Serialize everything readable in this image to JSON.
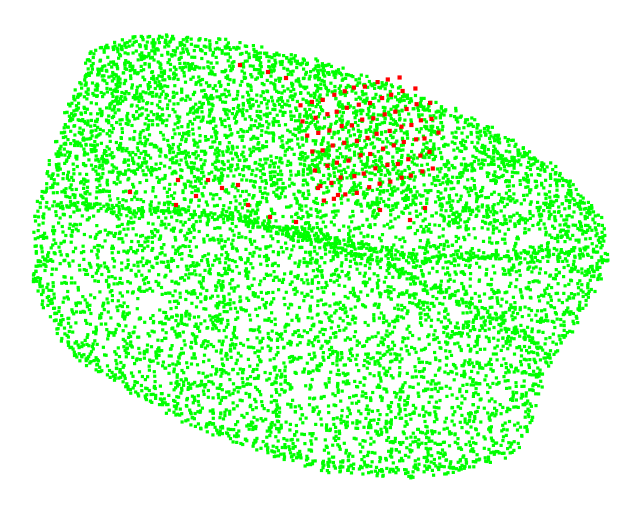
{
  "scene": {
    "subject": "point-cloud",
    "background_color": "#ffffff",
    "point_colors": {
      "primary": "#00ff00",
      "highlight": "#ff0000"
    },
    "highlight_band_count": 7,
    "highlight_band_points": 10
  }
}
